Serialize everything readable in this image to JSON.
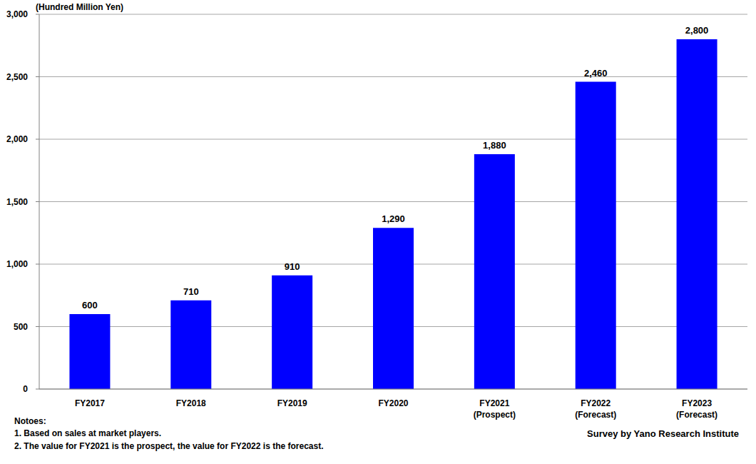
{
  "chart_data": {
    "type": "bar",
    "y_axis_label": "(Hundred Million Yen)",
    "categories": [
      "FY2017",
      "FY2018",
      "FY2019",
      "FY2020",
      "FY2021\n(Prospect)",
      "FY2022\n(Forecast)",
      "FY2023\n(Forecast)"
    ],
    "values": [
      600,
      710,
      910,
      1290,
      1880,
      2460,
      2800
    ],
    "value_labels": [
      "600",
      "710",
      "910",
      "1,290",
      "1,880",
      "2,460",
      "2,800"
    ],
    "color": "#0000ff",
    "ylim": [
      0,
      3000
    ],
    "yticks": [
      0,
      500,
      {
        "value": 1000,
        "label": "1,000"
      },
      {
        "value": 1500,
        "label": "1,500"
      },
      {
        "value": 2000,
        "label": "2,000"
      },
      {
        "value": 2500,
        "label": "2,500"
      },
      {
        "value": 3000,
        "label": "3,000"
      }
    ],
    "grid": true,
    "data_labels": true,
    "notes_heading": "Notoes:",
    "notes": [
      "1. Based on sales at market players.",
      "2. The value for FY2021 is the prospect, the value for FY2022 is the forecast."
    ],
    "source": "Survey by Yano Research Institute"
  }
}
